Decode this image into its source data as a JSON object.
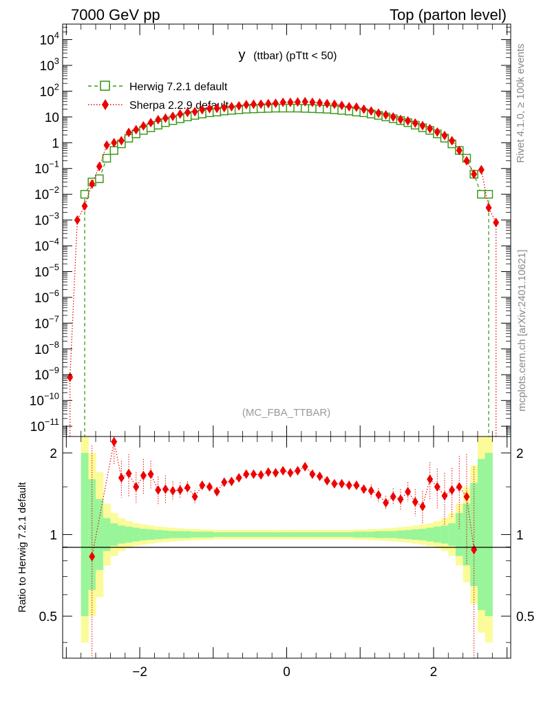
{
  "header": {
    "left": "7000 GeV pp",
    "right": "Top (parton level)"
  },
  "side_labels": {
    "rivet": "Rivet 4.1.0, ≥ 100k events",
    "mcplots": "mcplots.cern.ch [arXiv:2401.10621]"
  },
  "colors": {
    "herwig": "#3a9a1a",
    "sherpa": "#ee0000",
    "band_inner": "#99f599",
    "band_outer": "#fbfb99"
  },
  "chart_data": [
    {
      "type": "scatter",
      "panel": "main",
      "title": "y (ttbar) (pTtt < 50)",
      "title_main": "y",
      "title_sub": "(ttbar)  (pTtt < 50)",
      "watermark": "(MC_FBA_TTBAR)",
      "yscale": "log",
      "xlim": [
        -3.05,
        3.05
      ],
      "ylim": [
        4e-12,
        40000
      ],
      "yticks": [
        {
          "v": 10000.0,
          "m": "10",
          "e": "4"
        },
        {
          "v": 1000.0,
          "m": "10",
          "e": "3"
        },
        {
          "v": 100.0,
          "m": "10",
          "e": "2"
        },
        {
          "v": 10,
          "m": "10",
          "e": ""
        },
        {
          "v": 1,
          "m": "1",
          "e": ""
        },
        {
          "v": 0.1,
          "m": "10",
          "e": "−1"
        },
        {
          "v": 0.01,
          "m": "10",
          "e": "−2"
        },
        {
          "v": 0.001,
          "m": "10",
          "e": "−3"
        },
        {
          "v": 0.0001,
          "m": "10",
          "e": "−4"
        },
        {
          "v": 1e-05,
          "m": "10",
          "e": "−5"
        },
        {
          "v": 1e-06,
          "m": "10",
          "e": "−6"
        },
        {
          "v": 1e-07,
          "m": "10",
          "e": "−7"
        },
        {
          "v": 1e-08,
          "m": "10",
          "e": "−8"
        },
        {
          "v": 1e-09,
          "m": "10",
          "e": "−9"
        },
        {
          "v": 1e-10,
          "m": "10",
          "e": "−10"
        },
        {
          "v": 1e-11,
          "m": "10",
          "e": "−11"
        }
      ],
      "series": [
        {
          "name": "Herwig 7.2.1 default",
          "marker": "open-square",
          "style": "dashed",
          "x": [
            -2.75,
            -2.65,
            -2.55,
            -2.45,
            -2.35,
            -2.25,
            -2.15,
            -2.05,
            -1.95,
            -1.85,
            -1.75,
            -1.65,
            -1.55,
            -1.45,
            -1.35,
            -1.25,
            -1.15,
            -1.05,
            -0.95,
            -0.85,
            -0.75,
            -0.65,
            -0.55,
            -0.45,
            -0.35,
            -0.25,
            -0.15,
            -0.05,
            0.05,
            0.15,
            0.25,
            0.35,
            0.45,
            0.55,
            0.65,
            0.75,
            0.85,
            0.95,
            1.05,
            1.15,
            1.25,
            1.35,
            1.45,
            1.55,
            1.65,
            1.75,
            1.85,
            1.95,
            2.05,
            2.15,
            2.25,
            2.35,
            2.45,
            2.55,
            2.65,
            2.75
          ],
          "y": [
            0.01,
            0.03,
            0.04,
            0.25,
            0.5,
            0.9,
            1.5,
            2.2,
            3.0,
            3.8,
            4.8,
            6.0,
            7.2,
            8.5,
            10,
            11.5,
            13,
            14.5,
            15.5,
            17,
            18,
            19,
            20,
            20.5,
            21,
            21.5,
            22,
            22,
            22,
            22,
            21.5,
            21,
            20.5,
            20,
            19,
            18,
            17,
            15.5,
            14.5,
            13,
            11.5,
            10,
            8.5,
            7.2,
            6.0,
            4.8,
            3.8,
            3.0,
            2.2,
            1.5,
            0.9,
            0.5,
            0.25,
            0.06,
            0.01,
            0.01
          ]
        },
        {
          "name": "Sherpa 2.2.9 default",
          "marker": "filled-diamond",
          "style": "dotted",
          "x": [
            -2.95,
            -2.85,
            -2.75,
            -2.65,
            -2.55,
            -2.45,
            -2.35,
            -2.25,
            -2.15,
            -2.05,
            -1.95,
            -1.85,
            -1.75,
            -1.65,
            -1.55,
            -1.45,
            -1.35,
            -1.25,
            -1.15,
            -1.05,
            -0.95,
            -0.85,
            -0.75,
            -0.65,
            -0.55,
            -0.45,
            -0.35,
            -0.25,
            -0.15,
            -0.05,
            0.05,
            0.15,
            0.25,
            0.35,
            0.45,
            0.55,
            0.65,
            0.75,
            0.85,
            0.95,
            1.05,
            1.15,
            1.25,
            1.35,
            1.45,
            1.55,
            1.65,
            1.75,
            1.85,
            1.95,
            2.05,
            2.15,
            2.25,
            2.35,
            2.45,
            2.55,
            2.65,
            2.75,
            2.85
          ],
          "y": [
            8e-10,
            0.001,
            0.0035,
            0.025,
            0.12,
            0.8,
            1.0,
            1.2,
            2.5,
            3.2,
            4.5,
            6.0,
            7.8,
            9.0,
            10.5,
            13,
            15,
            16,
            19,
            21,
            21.5,
            23,
            25,
            27,
            30,
            31,
            31.5,
            33,
            34,
            37,
            37,
            38,
            39,
            37,
            35,
            33,
            31,
            28,
            25,
            24,
            20,
            17,
            14,
            12,
            10,
            8,
            7,
            5.8,
            4.6,
            3.5,
            2.6,
            1.9,
            1.2,
            0.5,
            0.2,
            0.06,
            0.09,
            0.003,
            0.0008
          ]
        }
      ]
    },
    {
      "type": "line",
      "panel": "ratio",
      "ylabel": "Ratio to Herwig 7.2.1 default",
      "xlim": [
        -3.05,
        3.05
      ],
      "ylim": [
        0.35,
        2.3
      ],
      "yticks": [
        0.5,
        1,
        2
      ],
      "xticks": [
        -2,
        0,
        2
      ],
      "band_edges": [
        -2.8,
        -2.7,
        -2.6,
        -2.5,
        -2.4,
        -2.3,
        -2.2,
        -2.1,
        -2.0,
        -1.9,
        -1.8,
        -1.7,
        -1.6,
        -1.5,
        -1.4,
        -1.3,
        -1.2,
        -1.1,
        -1.0,
        -0.9,
        -0.8,
        -0.7,
        -0.6,
        -0.5,
        -0.4,
        -0.3,
        -0.2,
        -0.1,
        0.0,
        0.1,
        0.2,
        0.3,
        0.4,
        0.5,
        0.6,
        0.7,
        0.8,
        0.9,
        1.0,
        1.1,
        1.2,
        1.3,
        1.4,
        1.5,
        1.6,
        1.7,
        1.8,
        1.9,
        2.0,
        2.1,
        2.2,
        2.3,
        2.4,
        2.5,
        2.6,
        2.7,
        2.8
      ],
      "band_outer": [
        2.5,
        2.0,
        1.7,
        1.3,
        1.2,
        1.15,
        1.12,
        1.1,
        1.09,
        1.08,
        1.07,
        1.065,
        1.06,
        1.055,
        1.05,
        1.05,
        1.045,
        1.045,
        1.04,
        1.04,
        1.04,
        1.04,
        1.04,
        1.04,
        1.04,
        1.04,
        1.04,
        1.04,
        1.04,
        1.04,
        1.04,
        1.04,
        1.04,
        1.04,
        1.04,
        1.04,
        1.04,
        1.045,
        1.045,
        1.05,
        1.05,
        1.055,
        1.06,
        1.065,
        1.07,
        1.08,
        1.09,
        1.1,
        1.12,
        1.15,
        1.2,
        1.3,
        1.5,
        1.8,
        2.3,
        2.5
      ],
      "band_inner": [
        2.0,
        1.6,
        1.35,
        1.15,
        1.1,
        1.08,
        1.07,
        1.06,
        1.05,
        1.045,
        1.04,
        1.035,
        1.03,
        1.03,
        1.03,
        1.025,
        1.025,
        1.025,
        1.02,
        1.02,
        1.02,
        1.02,
        1.02,
        1.02,
        1.02,
        1.02,
        1.02,
        1.02,
        1.02,
        1.02,
        1.02,
        1.02,
        1.02,
        1.02,
        1.02,
        1.02,
        1.02,
        1.025,
        1.025,
        1.025,
        1.03,
        1.03,
        1.03,
        1.035,
        1.04,
        1.045,
        1.05,
        1.06,
        1.07,
        1.08,
        1.1,
        1.2,
        1.3,
        1.55,
        1.9,
        2.0
      ],
      "series": [
        {
          "name": "Sherpa 2.2.9 default",
          "x": [
            -2.65,
            -2.35,
            -2.25,
            -2.15,
            -2.05,
            -1.95,
            -1.85,
            -1.75,
            -1.65,
            -1.55,
            -1.45,
            -1.35,
            -1.25,
            -1.15,
            -1.05,
            -0.95,
            -0.85,
            -0.75,
            -0.65,
            -0.55,
            -0.45,
            -0.35,
            -0.25,
            -0.15,
            -0.05,
            0.05,
            0.15,
            0.25,
            0.35,
            0.45,
            0.55,
            0.65,
            0.75,
            0.85,
            0.95,
            1.05,
            1.15,
            1.25,
            1.35,
            1.45,
            1.55,
            1.65,
            1.75,
            1.85,
            1.95,
            2.05,
            2.15,
            2.25,
            2.35,
            2.45,
            2.55
          ],
          "y": [
            0.83,
            2.2,
            1.62,
            1.68,
            1.5,
            1.65,
            1.67,
            1.46,
            1.47,
            1.45,
            1.46,
            1.49,
            1.38,
            1.52,
            1.5,
            1.44,
            1.56,
            1.57,
            1.62,
            1.67,
            1.67,
            1.66,
            1.7,
            1.69,
            1.72,
            1.69,
            1.72,
            1.78,
            1.67,
            1.64,
            1.58,
            1.54,
            1.54,
            1.52,
            1.52,
            1.47,
            1.45,
            1.4,
            1.31,
            1.38,
            1.35,
            1.44,
            1.32,
            1.27,
            1.6,
            1.5,
            1.39,
            1.46,
            1.5,
            1.38,
            0.88
          ],
          "err": [
            1.3,
            0.4,
            0.25,
            0.3,
            0.2,
            0.25,
            0.2,
            0.18,
            0.18,
            0.12,
            0.1,
            0.08,
            0.08,
            0.06,
            0.06,
            0.06,
            0.05,
            0.05,
            0.05,
            0.05,
            0.05,
            0.05,
            0.05,
            0.05,
            0.05,
            0.05,
            0.05,
            0.05,
            0.05,
            0.05,
            0.05,
            0.05,
            0.06,
            0.06,
            0.06,
            0.06,
            0.08,
            0.08,
            0.08,
            0.1,
            0.12,
            0.12,
            0.15,
            0.18,
            0.25,
            0.25,
            0.3,
            0.3,
            0.45,
            0.6,
            0.9
          ]
        }
      ]
    }
  ]
}
